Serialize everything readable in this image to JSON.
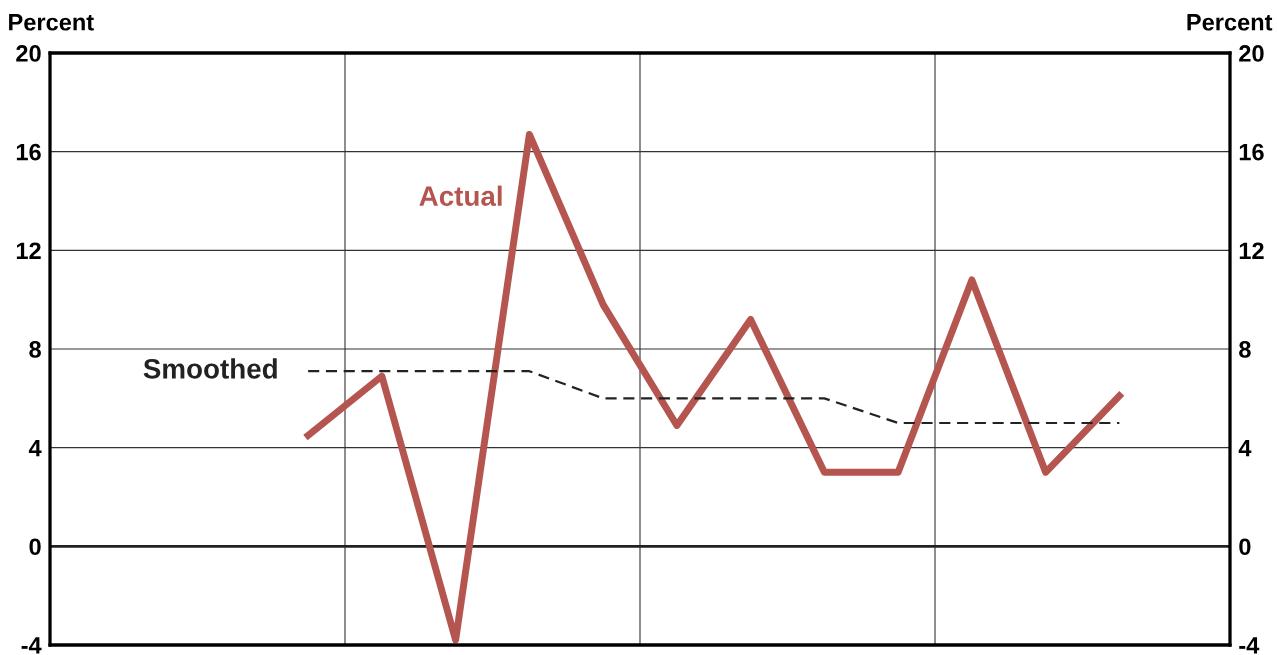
{
  "chart_data": {
    "type": "line",
    "categories": [
      null,
      null,
      null,
      null,
      null,
      null,
      null,
      null,
      null,
      null,
      null,
      null,
      null,
      null,
      null,
      null
    ],
    "series": [
      {
        "name": "Actual",
        "color": "#b5554f",
        "line_style": "solid",
        "values": [
          null,
          null,
          null,
          4.5,
          6.9,
          -3.8,
          16.7,
          9.8,
          4.9,
          9.2,
          3.0,
          3.0,
          10.8,
          3.0,
          6.1,
          null
        ]
      },
      {
        "name": "Smoothed",
        "color": "#222222",
        "line_style": "dashed",
        "values": [
          null,
          null,
          null,
          7.1,
          7.1,
          7.1,
          7.1,
          6.0,
          6.0,
          6.0,
          6.0,
          5.0,
          5.0,
          5.0,
          5.0,
          null
        ]
      }
    ],
    "ylabel": "Percent",
    "y2label": "Percent",
    "ylim": [
      -4,
      20
    ],
    "yticks": [
      -4,
      0,
      4,
      8,
      12,
      16,
      20
    ],
    "y2lim": [
      -4,
      20
    ],
    "y2ticks": [
      -4,
      0,
      4,
      8,
      12,
      16,
      20
    ],
    "ref_lines": [
      {
        "axis": "y",
        "value": 0,
        "color": "#222222"
      }
    ],
    "grid": true,
    "legend": false,
    "marker": "none"
  }
}
